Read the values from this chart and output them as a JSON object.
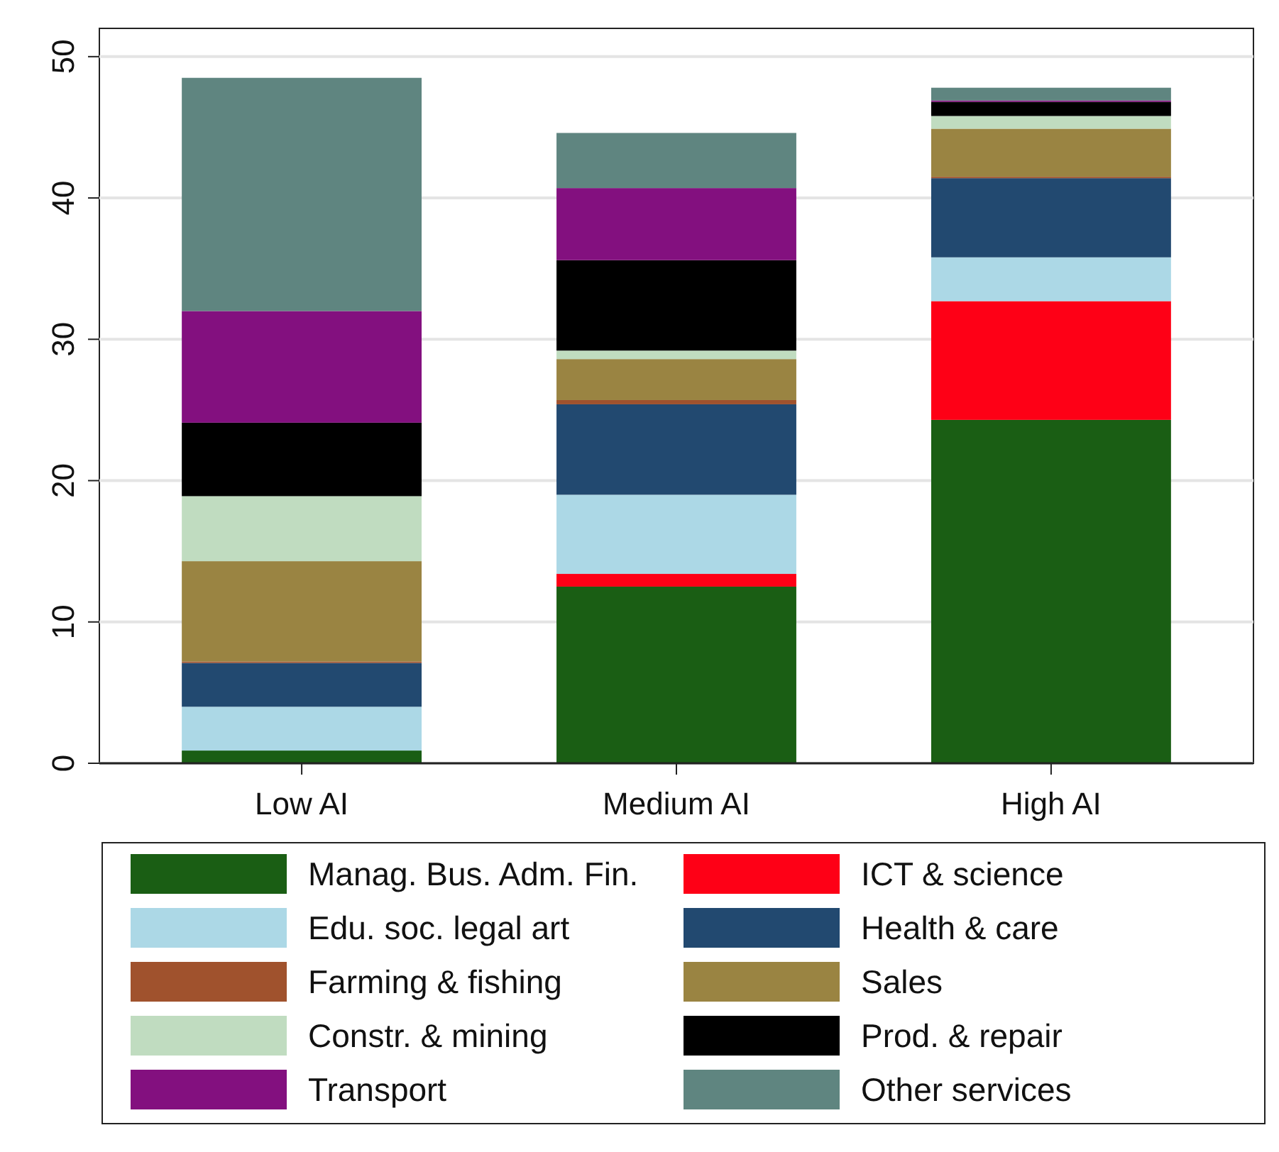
{
  "chart_data": {
    "type": "bar",
    "stacked": true,
    "categories": [
      "Low AI",
      "Medium AI",
      "High AI"
    ],
    "ylim": [
      0,
      52
    ],
    "yticks": [
      0,
      10,
      20,
      30,
      40,
      50
    ],
    "grid": "y",
    "legend": "bottom",
    "series": [
      {
        "name": "Manag. Bus. Adm. Fin.",
        "color": "#1a5e14",
        "values": [
          0.9,
          12.5,
          24.3
        ]
      },
      {
        "name": "ICT & science",
        "color": "#fe0016",
        "values": [
          0,
          0.9,
          8.4
        ]
      },
      {
        "name": "Edu. soc. legal art",
        "color": "#acd8e6",
        "values": [
          3.1,
          5.6,
          3.1
        ]
      },
      {
        "name": "Health & care",
        "color": "#224970",
        "values": [
          3.1,
          6.4,
          5.6
        ]
      },
      {
        "name": "Farming & fishing",
        "color": "#a0522d",
        "values": [
          0.1,
          0.3,
          0.1
        ]
      },
      {
        "name": "Sales",
        "color": "#9a8442",
        "values": [
          7.1,
          2.9,
          3.4
        ]
      },
      {
        "name": "Constr. & mining",
        "color": "#c0dcc0",
        "values": [
          4.6,
          0.6,
          0.9
        ]
      },
      {
        "name": "Prod. & repair",
        "color": "#000000",
        "values": [
          5.2,
          6.4,
          1.0
        ]
      },
      {
        "name": "Transport",
        "color": "#83107f",
        "values": [
          7.9,
          5.1,
          0.1
        ]
      },
      {
        "name": "Other services",
        "color": "#5f8580",
        "values": [
          16.5,
          3.9,
          0.9
        ]
      }
    ]
  }
}
